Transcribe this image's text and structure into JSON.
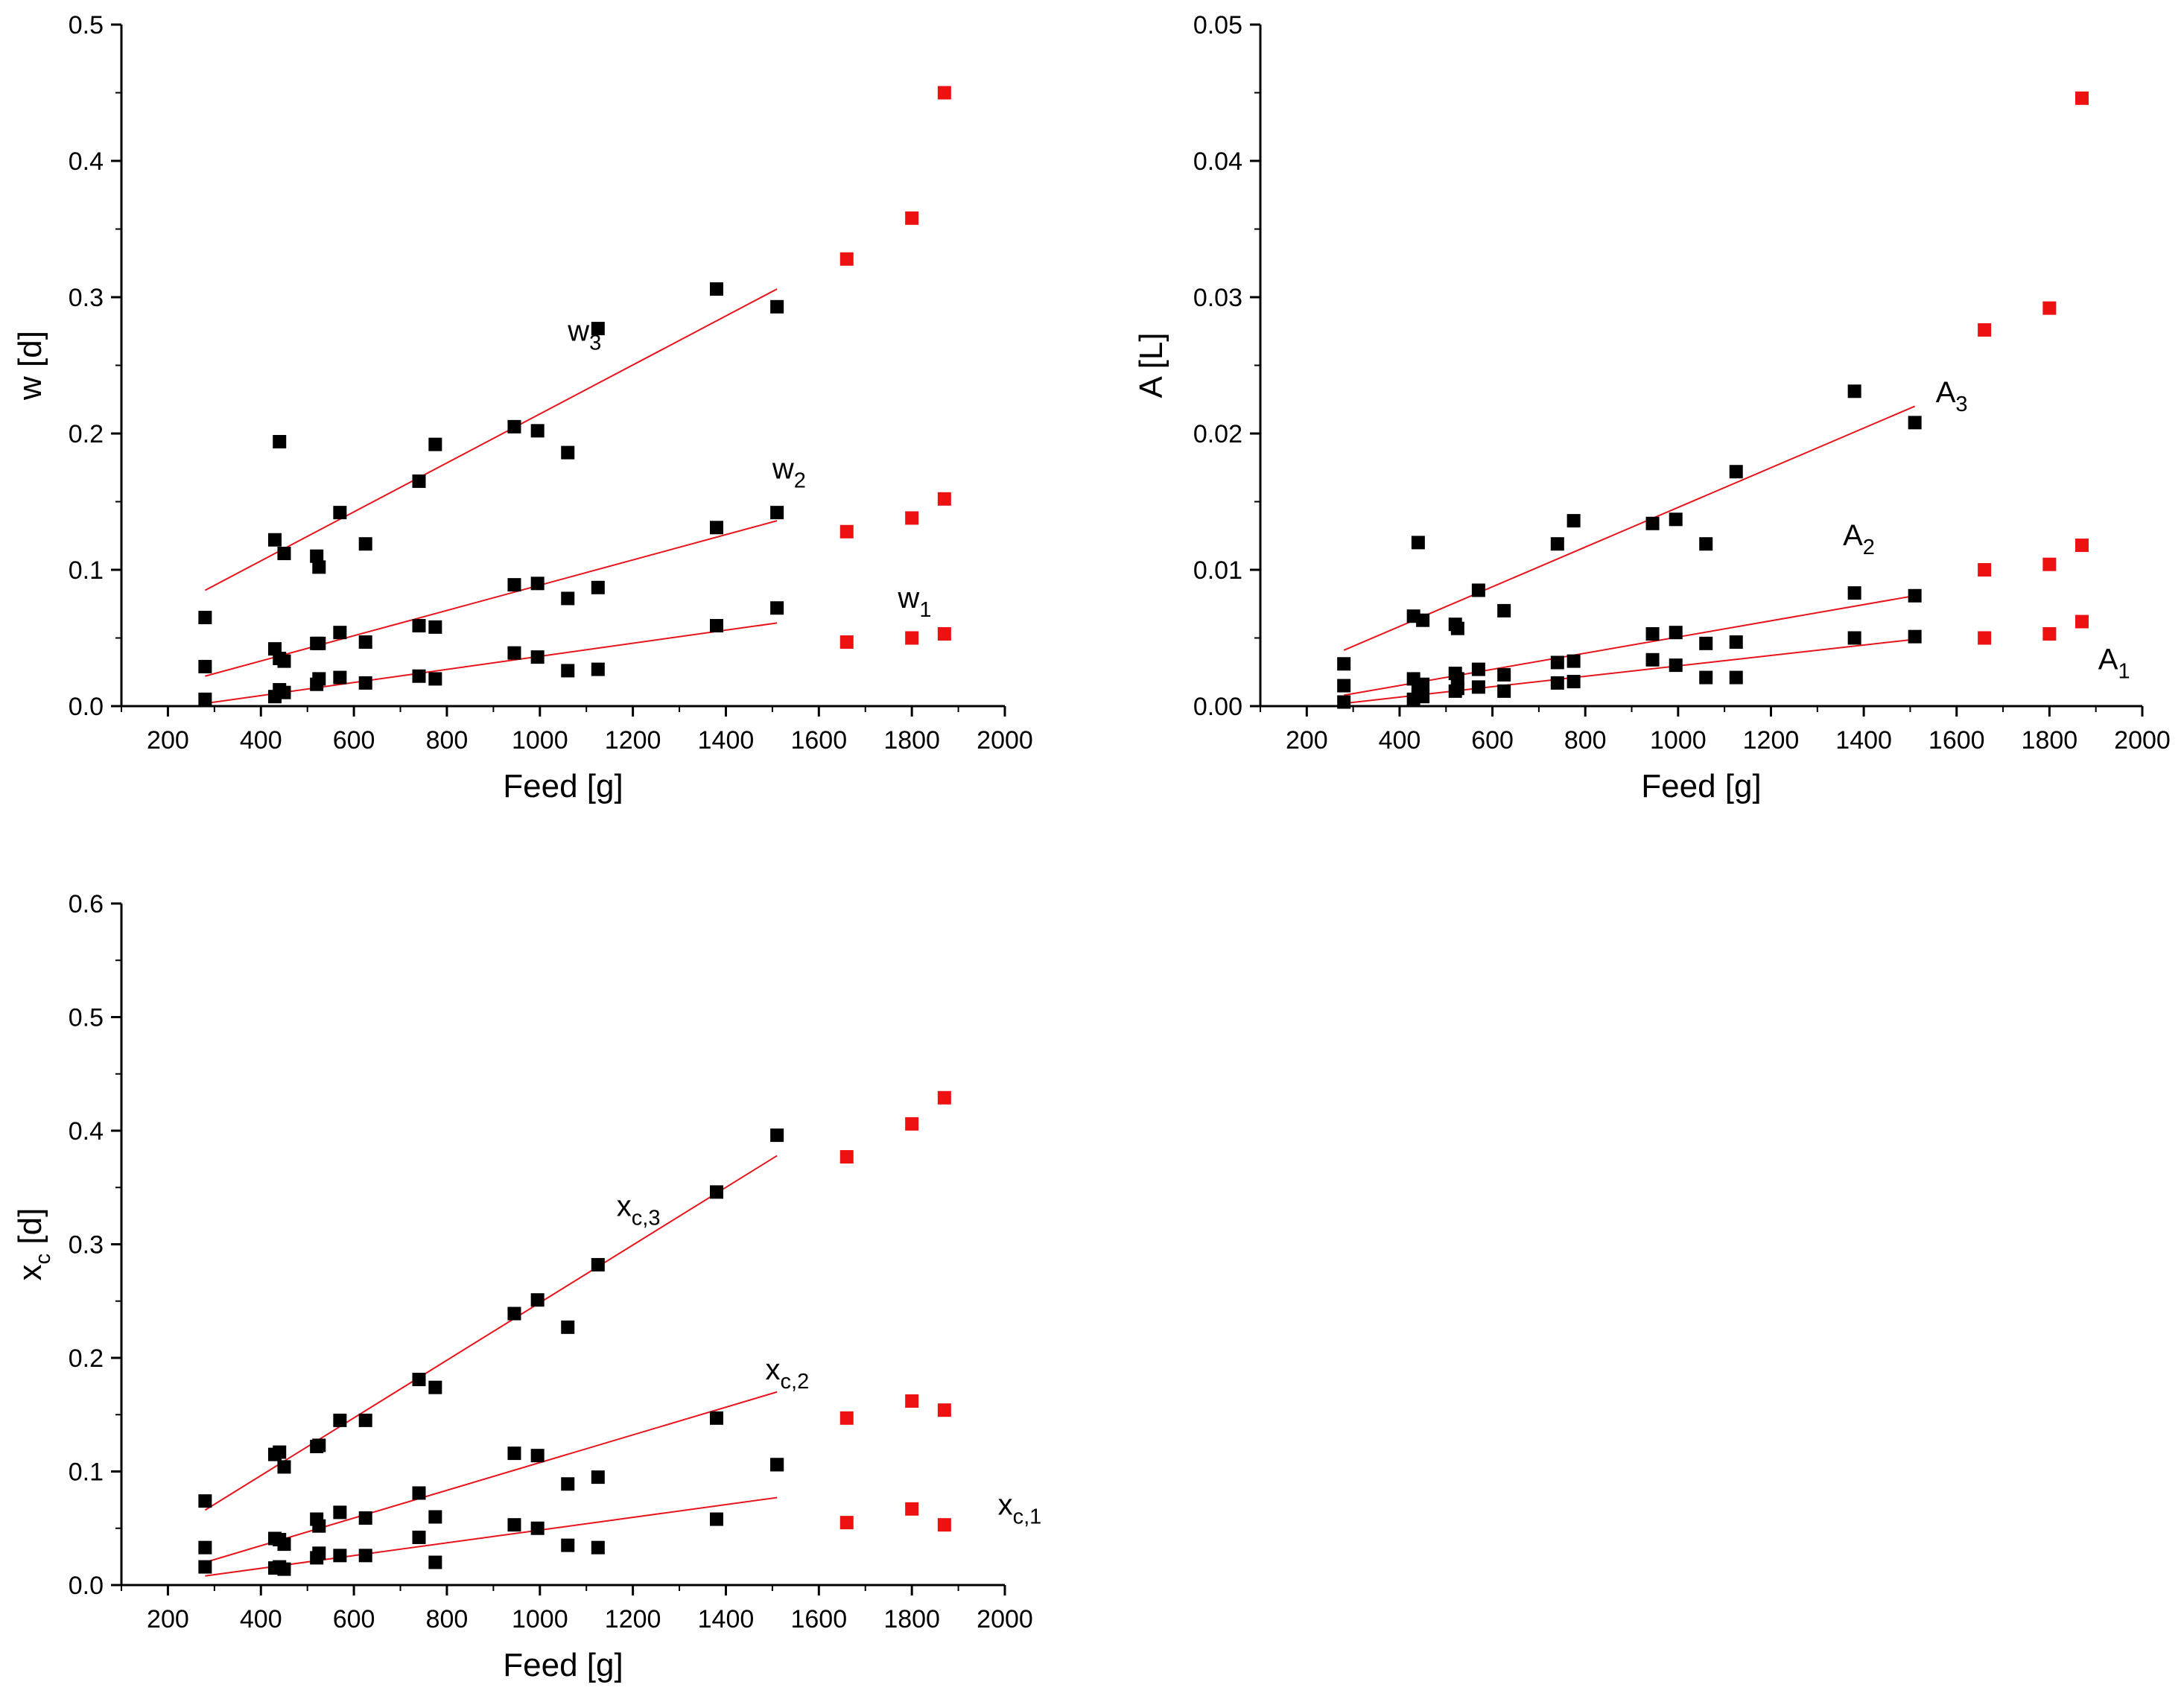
{
  "colors": {
    "fit": "#e8141b",
    "point": "#000000",
    "predicted": "#ee1111",
    "axis": "#000000"
  },
  "chart_data": [
    {
      "id": "w",
      "type": "scatter",
      "xlabel": "Feed [g]",
      "ylabel": "w [d]",
      "xlim": [
        100,
        2000
      ],
      "ylim": [
        0,
        0.5
      ],
      "xticks": [
        200,
        400,
        600,
        800,
        1000,
        1200,
        1400,
        1600,
        1800,
        2000
      ],
      "xtick_labels": [
        "200",
        "400",
        "600",
        "800",
        "1000",
        "1200",
        "1400",
        "1600",
        "1800",
        "2000"
      ],
      "yticks": [
        0,
        0.1,
        0.2,
        0.3,
        0.4,
        0.5
      ],
      "ytick_labels": [
        "0.0",
        "0.1",
        "0.2",
        "0.3",
        "0.4",
        "0.5"
      ],
      "series": [
        {
          "name": "w3",
          "label_base": "w",
          "label_sub": "3",
          "label_pos": [
            1060,
            0.268
          ],
          "fit": [
            [
              280,
              0.085
            ],
            [
              1510,
              0.306
            ]
          ],
          "points": [
            [
              280,
              0.065
            ],
            [
              430,
              0.122
            ],
            [
              440,
              0.194
            ],
            [
              450,
              0.112
            ],
            [
              520,
              0.11
            ],
            [
              525,
              0.102
            ],
            [
              570,
              0.142
            ],
            [
              625,
              0.119
            ],
            [
              740,
              0.165
            ],
            [
              775,
              0.192
            ],
            [
              945,
              0.205
            ],
            [
              995,
              0.202
            ],
            [
              1060,
              0.186
            ],
            [
              1125,
              0.277
            ],
            [
              1380,
              0.306
            ],
            [
              1510,
              0.293
            ]
          ],
          "predicted": [
            [
              1660,
              0.328
            ],
            [
              1800,
              0.358
            ],
            [
              1870,
              0.45
            ]
          ]
        },
        {
          "name": "w2",
          "label_base": "w",
          "label_sub": "2",
          "label_pos": [
            1500,
            0.167
          ],
          "fit": [
            [
              280,
              0.022
            ],
            [
              1510,
              0.136
            ]
          ],
          "points": [
            [
              280,
              0.029
            ],
            [
              430,
              0.042
            ],
            [
              440,
              0.035
            ],
            [
              450,
              0.033
            ],
            [
              520,
              0.046
            ],
            [
              525,
              0.046
            ],
            [
              570,
              0.054
            ],
            [
              625,
              0.047
            ],
            [
              740,
              0.059
            ],
            [
              775,
              0.058
            ],
            [
              945,
              0.089
            ],
            [
              995,
              0.09
            ],
            [
              1060,
              0.079
            ],
            [
              1125,
              0.087
            ],
            [
              1380,
              0.131
            ],
            [
              1510,
              0.142
            ]
          ],
          "predicted": [
            [
              1660,
              0.128
            ],
            [
              1800,
              0.138
            ],
            [
              1870,
              0.152
            ]
          ]
        },
        {
          "name": "w1",
          "label_base": "w",
          "label_sub": "1",
          "label_pos": [
            1770,
            0.072
          ],
          "fit": [
            [
              280,
              0.002
            ],
            [
              1510,
              0.061
            ]
          ],
          "points": [
            [
              280,
              0.005
            ],
            [
              430,
              0.007
            ],
            [
              440,
              0.012
            ],
            [
              450,
              0.01
            ],
            [
              520,
              0.016
            ],
            [
              525,
              0.02
            ],
            [
              570,
              0.021
            ],
            [
              625,
              0.017
            ],
            [
              740,
              0.022
            ],
            [
              775,
              0.02
            ],
            [
              945,
              0.039
            ],
            [
              995,
              0.036
            ],
            [
              1060,
              0.026
            ],
            [
              1125,
              0.027
            ],
            [
              1380,
              0.059
            ],
            [
              1510,
              0.072
            ]
          ],
          "predicted": [
            [
              1660,
              0.047
            ],
            [
              1800,
              0.05
            ],
            [
              1870,
              0.053
            ]
          ]
        }
      ]
    },
    {
      "id": "A",
      "type": "scatter",
      "xlabel": "Feed [g]",
      "ylabel": "A [L]",
      "xlim": [
        100,
        2000
      ],
      "ylim": [
        0,
        0.05
      ],
      "xticks": [
        200,
        400,
        600,
        800,
        1000,
        1200,
        1400,
        1600,
        1800,
        2000
      ],
      "xtick_labels": [
        "200",
        "400",
        "600",
        "800",
        "1000",
        "1200",
        "1400",
        "1600",
        "1800",
        "2000"
      ],
      "yticks": [
        0,
        0.01,
        0.02,
        0.03,
        0.04,
        0.05
      ],
      "ytick_labels": [
        "0.00",
        "0.01",
        "0.02",
        "0.03",
        "0.04",
        "0.05"
      ],
      "series": [
        {
          "name": "A3",
          "label_base": "A",
          "label_sub": "3",
          "label_pos": [
            1555,
            0.0223
          ],
          "fit": [
            [
              280,
              0.0041
            ],
            [
              1510,
              0.022
            ]
          ],
          "points": [
            [
              280,
              0.0031
            ],
            [
              430,
              0.0066
            ],
            [
              440,
              0.012
            ],
            [
              450,
              0.0063
            ],
            [
              520,
              0.006
            ],
            [
              525,
              0.0057
            ],
            [
              570,
              0.0085
            ],
            [
              625,
              0.007
            ],
            [
              740,
              0.0119
            ],
            [
              775,
              0.0136
            ],
            [
              945,
              0.0134
            ],
            [
              995,
              0.0137
            ],
            [
              1060,
              0.0119
            ],
            [
              1125,
              0.0172
            ],
            [
              1380,
              0.0231
            ],
            [
              1510,
              0.0208
            ]
          ],
          "predicted": [
            [
              1660,
              0.0276
            ],
            [
              1800,
              0.0292
            ],
            [
              1870,
              0.0446
            ]
          ]
        },
        {
          "name": "A2",
          "label_base": "A",
          "label_sub": "2",
          "label_pos": [
            1355,
            0.0118
          ],
          "fit": [
            [
              280,
              0.0008
            ],
            [
              1510,
              0.0081
            ]
          ],
          "points": [
            [
              280,
              0.0015
            ],
            [
              430,
              0.002
            ],
            [
              440,
              0.0013
            ],
            [
              450,
              0.0016
            ],
            [
              520,
              0.0024
            ],
            [
              525,
              0.002
            ],
            [
              570,
              0.0027
            ],
            [
              625,
              0.0023
            ],
            [
              740,
              0.0032
            ],
            [
              775,
              0.0033
            ],
            [
              945,
              0.0053
            ],
            [
              995,
              0.0054
            ],
            [
              1060,
              0.0046
            ],
            [
              1125,
              0.0047
            ],
            [
              1380,
              0.0083
            ],
            [
              1510,
              0.0081
            ]
          ],
          "predicted": [
            [
              1660,
              0.01
            ],
            [
              1800,
              0.0104
            ],
            [
              1870,
              0.0118
            ]
          ]
        },
        {
          "name": "A1",
          "label_base": "A",
          "label_sub": "1",
          "label_pos": [
            1905,
            0.0027
          ],
          "fit": [
            [
              280,
              0.0002
            ],
            [
              1510,
              0.0049
            ]
          ],
          "points": [
            [
              280,
              0.0003
            ],
            [
              430,
              0.0005
            ],
            [
              440,
              0.0008
            ],
            [
              450,
              0.0007
            ],
            [
              520,
              0.0011
            ],
            [
              525,
              0.0013
            ],
            [
              570,
              0.0014
            ],
            [
              625,
              0.0011
            ],
            [
              740,
              0.0017
            ],
            [
              775,
              0.0018
            ],
            [
              945,
              0.0034
            ],
            [
              995,
              0.003
            ],
            [
              1060,
              0.0021
            ],
            [
              1125,
              0.0021
            ],
            [
              1380,
              0.005
            ],
            [
              1510,
              0.0051
            ]
          ],
          "predicted": [
            [
              1660,
              0.005
            ],
            [
              1800,
              0.0053
            ],
            [
              1870,
              0.0062
            ]
          ]
        }
      ]
    },
    {
      "id": "xc",
      "type": "scatter",
      "xlabel": "Feed [g]",
      "ylabel_base": "x",
      "ylabel_sub": "c",
      "ylabel_rest": " [d]",
      "xlim": [
        100,
        2000
      ],
      "ylim": [
        0,
        0.6
      ],
      "xticks": [
        200,
        400,
        600,
        800,
        1000,
        1200,
        1400,
        1600,
        1800,
        2000
      ],
      "xtick_labels": [
        "200",
        "400",
        "600",
        "800",
        "1000",
        "1200",
        "1400",
        "1600",
        "1800",
        "2000"
      ],
      "yticks": [
        0,
        0.1,
        0.2,
        0.3,
        0.4,
        0.5,
        0.6
      ],
      "ytick_labels": [
        "0.0",
        "0.1",
        "0.2",
        "0.3",
        "0.4",
        "0.5",
        "0.6"
      ],
      "series": [
        {
          "name": "xc,3",
          "label_base": "x",
          "label_sub": "c,3",
          "label_pos": [
            1165,
            0.325
          ],
          "fit": [
            [
              280,
              0.066
            ],
            [
              1510,
              0.378
            ]
          ],
          "points": [
            [
              280,
              0.074
            ],
            [
              430,
              0.115
            ],
            [
              440,
              0.117
            ],
            [
              450,
              0.104
            ],
            [
              520,
              0.122
            ],
            [
              525,
              0.123
            ],
            [
              570,
              0.145
            ],
            [
              625,
              0.145
            ],
            [
              740,
              0.181
            ],
            [
              775,
              0.174
            ],
            [
              945,
              0.239
            ],
            [
              995,
              0.251
            ],
            [
              1060,
              0.227
            ],
            [
              1125,
              0.282
            ],
            [
              1380,
              0.346
            ],
            [
              1510,
              0.396
            ]
          ],
          "predicted": [
            [
              1660,
              0.377
            ],
            [
              1800,
              0.406
            ],
            [
              1870,
              0.429
            ]
          ]
        },
        {
          "name": "xc,2",
          "label_base": "x",
          "label_sub": "c,2",
          "label_pos": [
            1485,
            0.181
          ],
          "fit": [
            [
              280,
              0.02
            ],
            [
              1510,
              0.17
            ]
          ],
          "points": [
            [
              280,
              0.033
            ],
            [
              430,
              0.041
            ],
            [
              440,
              0.04
            ],
            [
              450,
              0.036
            ],
            [
              520,
              0.058
            ],
            [
              525,
              0.052
            ],
            [
              570,
              0.064
            ],
            [
              625,
              0.059
            ],
            [
              740,
              0.081
            ],
            [
              775,
              0.06
            ],
            [
              945,
              0.116
            ],
            [
              995,
              0.114
            ],
            [
              1060,
              0.089
            ],
            [
              1125,
              0.095
            ],
            [
              1380,
              0.147
            ],
            [
              1510,
              0.106
            ]
          ],
          "predicted": [
            [
              1660,
              0.147
            ],
            [
              1800,
              0.162
            ],
            [
              1870,
              0.154
            ]
          ]
        },
        {
          "name": "xc,1",
          "label_base": "x",
          "label_sub": "c,1",
          "label_pos": [
            1985,
            0.062
          ],
          "fit": [
            [
              280,
              0.008
            ],
            [
              1510,
              0.077
            ]
          ],
          "points": [
            [
              280,
              0.016
            ],
            [
              430,
              0.015
            ],
            [
              440,
              0.016
            ],
            [
              450,
              0.014
            ],
            [
              520,
              0.024
            ],
            [
              525,
              0.028
            ],
            [
              570,
              0.026
            ],
            [
              625,
              0.026
            ],
            [
              740,
              0.042
            ],
            [
              775,
              0.02
            ],
            [
              945,
              0.053
            ],
            [
              995,
              0.05
            ],
            [
              1060,
              0.035
            ],
            [
              1125,
              0.033
            ],
            [
              1380,
              0.058
            ],
            [
              1510,
              0.106
            ]
          ],
          "predicted": [
            [
              1660,
              0.055
            ],
            [
              1800,
              0.067
            ],
            [
              1870,
              0.053
            ]
          ]
        }
      ]
    }
  ]
}
